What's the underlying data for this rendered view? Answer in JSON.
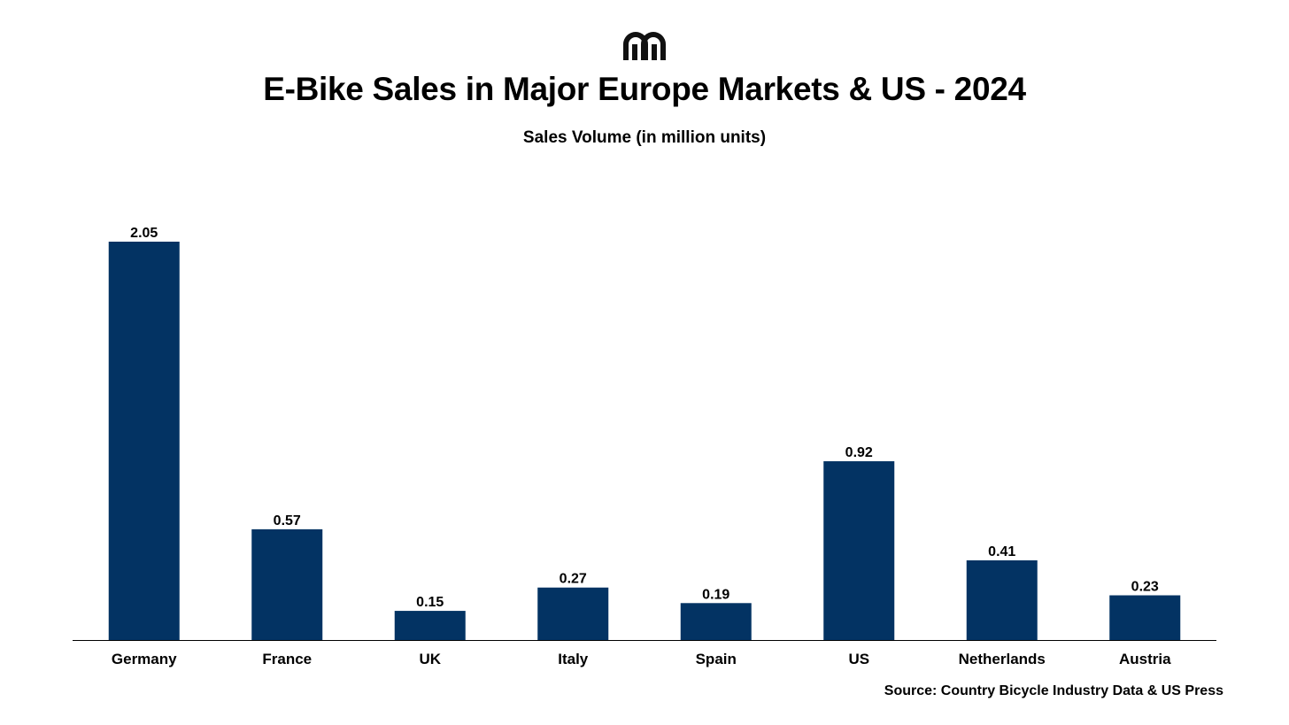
{
  "logo": {
    "icon": "brand-logo-icon"
  },
  "colors": {
    "bar": "#033363",
    "axis": "#000000",
    "text": "#000000"
  },
  "chart_data": {
    "type": "bar",
    "title": "E-Bike Sales in Major Europe Markets & US - 2024",
    "subtitle": "Sales Volume (in million units)",
    "categories": [
      "Germany",
      "France",
      "UK",
      "Italy",
      "Spain",
      "US",
      "Netherlands",
      "Austria"
    ],
    "values": [
      2.05,
      0.57,
      0.15,
      0.27,
      0.19,
      0.92,
      0.41,
      0.23
    ],
    "value_labels": [
      "2.05",
      "0.57",
      "0.15",
      "0.27",
      "0.19",
      "0.92",
      "0.41",
      "0.23"
    ],
    "xlabel": "",
    "ylabel": "",
    "ylim": [
      0,
      2.05
    ],
    "grid": false,
    "legend": "none"
  },
  "source": "Source: Country Bicycle Industry Data & US Press"
}
